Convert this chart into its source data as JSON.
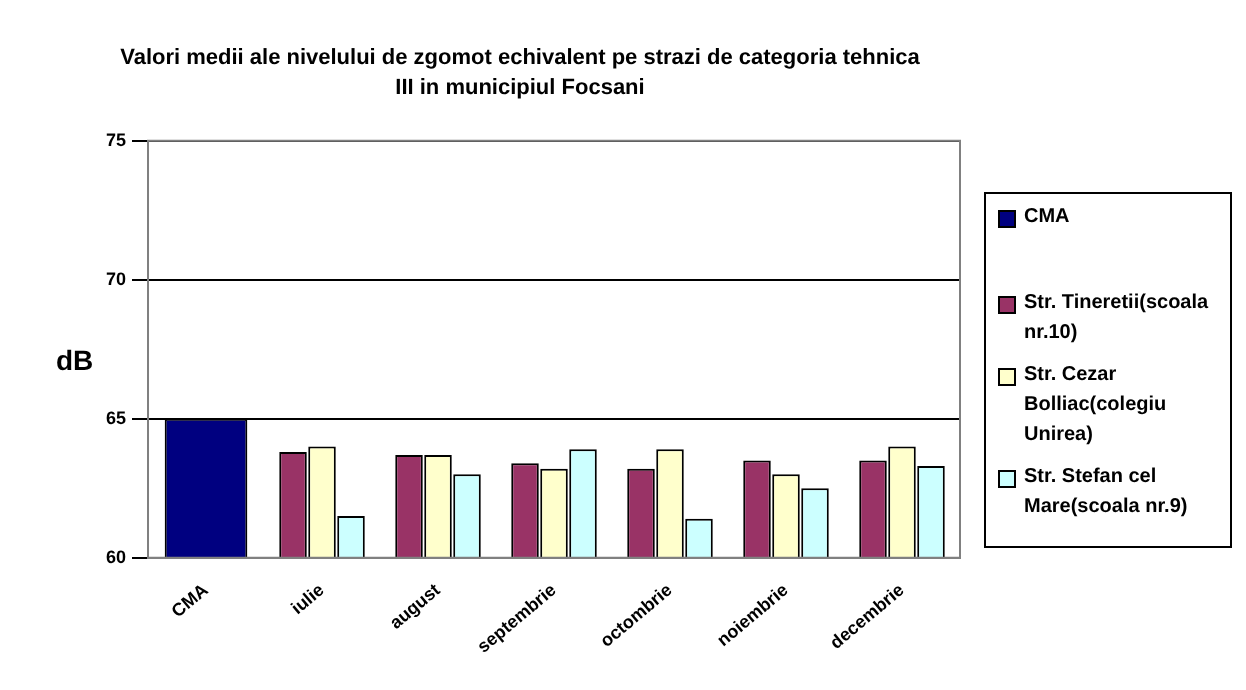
{
  "chart_data": {
    "type": "bar",
    "title": "Valori medii ale nivelului de zgomot echivalent pe strazi de categoria tehnica III in municipiul Focsani",
    "ylabel": "dB",
    "categories": [
      "CMA",
      "iulie",
      "august",
      "septembrie",
      "octombrie",
      "noiembrie",
      "decembrie"
    ],
    "series": [
      {
        "name": "CMA",
        "color": "#000080",
        "values": [
          65,
          null,
          null,
          null,
          null,
          null,
          null
        ]
      },
      {
        "name": "Str. Tineretii(scoala nr.10)",
        "color": "#993366",
        "values": [
          null,
          63.8,
          63.7,
          63.4,
          63.2,
          63.5,
          63.5
        ]
      },
      {
        "name": "Str. Cezar Bolliac(colegiu Unirea)",
        "color": "#ffffcc",
        "values": [
          null,
          64.0,
          63.7,
          63.2,
          63.9,
          63.0,
          64.0
        ]
      },
      {
        "name": "Str. Stefan cel Mare(scoala nr.9)",
        "color": "#ccffff",
        "values": [
          null,
          61.5,
          63.0,
          63.9,
          61.4,
          62.5,
          63.3
        ]
      }
    ],
    "ylim": [
      60,
      75
    ],
    "yticks": [
      60,
      65,
      70,
      75
    ],
    "grid": "y",
    "legend": "right"
  }
}
